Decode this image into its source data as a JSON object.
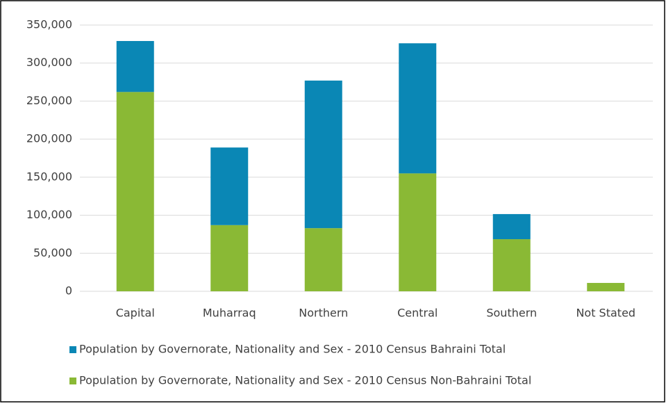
{
  "chart_data": {
    "type": "stacked_bar",
    "categories": [
      "Capital",
      "Muharraq",
      "Northern",
      "Central",
      "Southern",
      "Not Stated"
    ],
    "series": [
      {
        "name": "Population by Governorate, Nationality and Sex - 2010 Census Bahraini Total",
        "color": "#0a87b5",
        "values": [
          67000,
          102000,
          194000,
          171000,
          33000,
          0
        ]
      },
      {
        "name": "Population by Governorate, Nationality and Sex - 2010 Census Non-Bahraini Total",
        "color": "#8ab935",
        "values": [
          262000,
          87000,
          83000,
          155000,
          68500,
          11000
        ]
      }
    ],
    "ylim": [
      0,
      350000
    ],
    "yticks": [
      0,
      {
        "value": 50000,
        "label": "50,000"
      },
      {
        "value": 100000,
        "label": "100,000"
      },
      {
        "value": 150000,
        "label": "150,000"
      },
      {
        "value": 200000,
        "label": "200,000"
      },
      {
        "value": 250000,
        "label": "250,000"
      },
      {
        "value": 300000,
        "label": "300,000"
      },
      {
        "value": 350000,
        "label": "350,000"
      }
    ],
    "grid": true,
    "legend": "bottom"
  }
}
